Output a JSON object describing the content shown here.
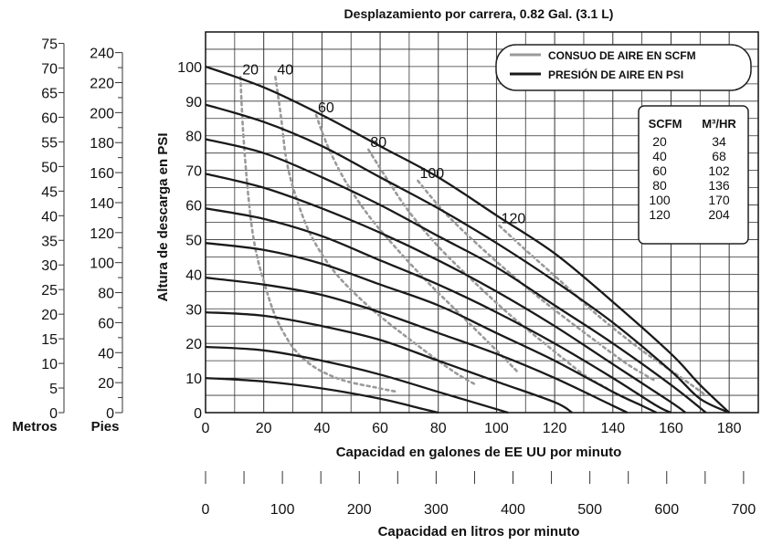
{
  "chart_data": {
    "type": "line",
    "title": "Desplazamiento por carrera, 0.82 Gal. (3.1 L)",
    "xlabel": "Capacidad en galones de EE UU por minuto",
    "ylabel": "Altura de descarga en PSI",
    "xlim": [
      0,
      190
    ],
    "ylim": [
      0,
      110
    ],
    "xticks": [
      "0",
      "20",
      "40",
      "60",
      "80",
      "100",
      "120",
      "140",
      "160",
      "180"
    ],
    "yticks": [
      "0",
      "10",
      "20",
      "30",
      "40",
      "50",
      "60",
      "70",
      "80",
      "90",
      "100"
    ],
    "secondary_x": {
      "label": "Capacidad en litros por minuto",
      "ticks": [
        "0",
        "100",
        "200",
        "300",
        "400",
        "500",
        "600",
        "700"
      ]
    },
    "left_axes": [
      {
        "label": "Metros",
        "ticks": [
          "0",
          "5",
          "10",
          "15",
          "20",
          "25",
          "30",
          "35",
          "40",
          "45",
          "50",
          "55",
          "60",
          "65",
          "70",
          "75"
        ]
      },
      {
        "label": "Pies",
        "ticks": [
          "0",
          "20",
          "40",
          "60",
          "80",
          "100",
          "120",
          "140",
          "160",
          "180",
          "200",
          "220",
          "240"
        ]
      }
    ],
    "legend": {
      "placement": "top-right",
      "items": [
        {
          "label": "CONSUO DE AIRE EN SCFM",
          "style": "dashed",
          "color": "#9a9a9a"
        },
        {
          "label": "PRESIÓN DE AIRE EN PSI",
          "style": "solid",
          "color": "#1a1a1a"
        }
      ]
    },
    "conversion_table": {
      "headers": [
        "SCFM",
        "M³/HR"
      ],
      "rows": [
        [
          "20",
          "34"
        ],
        [
          "40",
          "68"
        ],
        [
          "60",
          "102"
        ],
        [
          "80",
          "136"
        ],
        [
          "100",
          "170"
        ],
        [
          "120",
          "204"
        ]
      ]
    },
    "pressure_curves": [
      {
        "psi": 100,
        "points": [
          [
            0,
            100
          ],
          [
            20,
            94
          ],
          [
            40,
            86
          ],
          [
            60,
            77
          ],
          [
            80,
            68
          ],
          [
            100,
            57
          ],
          [
            120,
            46
          ],
          [
            140,
            32
          ],
          [
            160,
            17
          ],
          [
            170,
            8
          ],
          [
            180,
            0
          ]
        ]
      },
      {
        "psi": 90,
        "points": [
          [
            0,
            89
          ],
          [
            20,
            84
          ],
          [
            40,
            77
          ],
          [
            60,
            68
          ],
          [
            80,
            59
          ],
          [
            100,
            49
          ],
          [
            120,
            38
          ],
          [
            140,
            26
          ],
          [
            160,
            12
          ],
          [
            170,
            4
          ],
          [
            180,
            0
          ]
        ]
      },
      {
        "psi": 80,
        "points": [
          [
            0,
            79
          ],
          [
            20,
            75
          ],
          [
            40,
            68
          ],
          [
            60,
            60
          ],
          [
            80,
            51
          ],
          [
            100,
            42
          ],
          [
            120,
            31
          ],
          [
            140,
            20
          ],
          [
            160,
            8
          ],
          [
            172,
            0
          ]
        ]
      },
      {
        "psi": 70,
        "points": [
          [
            0,
            69
          ],
          [
            20,
            65
          ],
          [
            40,
            59
          ],
          [
            60,
            52
          ],
          [
            80,
            44
          ],
          [
            100,
            35
          ],
          [
            120,
            25
          ],
          [
            140,
            14
          ],
          [
            160,
            3
          ],
          [
            165,
            0
          ]
        ]
      },
      {
        "psi": 60,
        "points": [
          [
            0,
            59
          ],
          [
            20,
            56
          ],
          [
            40,
            51
          ],
          [
            60,
            44
          ],
          [
            80,
            37
          ],
          [
            100,
            29
          ],
          [
            120,
            20
          ],
          [
            140,
            10
          ],
          [
            155,
            2
          ],
          [
            160,
            0
          ]
        ]
      },
      {
        "psi": 50,
        "points": [
          [
            0,
            49
          ],
          [
            20,
            47
          ],
          [
            40,
            43
          ],
          [
            60,
            37
          ],
          [
            80,
            31
          ],
          [
            100,
            23
          ],
          [
            120,
            15
          ],
          [
            140,
            6
          ],
          [
            150,
            2
          ],
          [
            155,
            0
          ]
        ]
      },
      {
        "psi": 40,
        "points": [
          [
            0,
            39
          ],
          [
            20,
            37
          ],
          [
            40,
            34
          ],
          [
            60,
            29
          ],
          [
            80,
            23
          ],
          [
            100,
            17
          ],
          [
            120,
            10
          ],
          [
            140,
            2
          ],
          [
            145,
            0
          ]
        ]
      },
      {
        "psi": 30,
        "points": [
          [
            0,
            29
          ],
          [
            20,
            28
          ],
          [
            40,
            25
          ],
          [
            60,
            21
          ],
          [
            80,
            15
          ],
          [
            100,
            9
          ],
          [
            120,
            3
          ],
          [
            126,
            0
          ]
        ]
      },
      {
        "psi": 20,
        "points": [
          [
            0,
            19
          ],
          [
            20,
            18
          ],
          [
            40,
            15
          ],
          [
            60,
            11
          ],
          [
            80,
            6
          ],
          [
            100,
            1
          ],
          [
            104,
            0
          ]
        ]
      },
      {
        "psi": 10,
        "points": [
          [
            0,
            10
          ],
          [
            20,
            9
          ],
          [
            40,
            7
          ],
          [
            60,
            4
          ],
          [
            75,
            1
          ],
          [
            80,
            0
          ]
        ]
      }
    ],
    "air_consumption_curves": [
      {
        "scfm": 20,
        "label": "20",
        "points": [
          [
            12,
            97
          ],
          [
            13,
            80
          ],
          [
            15,
            60
          ],
          [
            17,
            48
          ],
          [
            20,
            38
          ],
          [
            25,
            26
          ],
          [
            33,
            16
          ],
          [
            45,
            10
          ],
          [
            60,
            7
          ],
          [
            66,
            6
          ]
        ]
      },
      {
        "scfm": 40,
        "label": "40",
        "points": [
          [
            24,
            97
          ],
          [
            26,
            85
          ],
          [
            28,
            72
          ],
          [
            32,
            60
          ],
          [
            37,
            50
          ],
          [
            45,
            40
          ],
          [
            57,
            30
          ],
          [
            72,
            20
          ],
          [
            85,
            12
          ],
          [
            93,
            8
          ]
        ]
      },
      {
        "scfm": 60,
        "label": "60",
        "points": [
          [
            38,
            86
          ],
          [
            42,
            77
          ],
          [
            48,
            67
          ],
          [
            56,
            57
          ],
          [
            65,
            48
          ],
          [
            76,
            38
          ],
          [
            88,
            28
          ],
          [
            100,
            18
          ],
          [
            107,
            12
          ]
        ]
      },
      {
        "scfm": 80,
        "label": "80",
        "points": [
          [
            56,
            76
          ],
          [
            62,
            68
          ],
          [
            70,
            58
          ],
          [
            80,
            48
          ],
          [
            92,
            38
          ],
          [
            105,
            28
          ],
          [
            118,
            19
          ],
          [
            130,
            11
          ],
          [
            138,
            7
          ]
        ]
      },
      {
        "scfm": 100,
        "label": "100",
        "points": [
          [
            73,
            67
          ],
          [
            82,
            58
          ],
          [
            93,
            49
          ],
          [
            105,
            40
          ],
          [
            118,
            31
          ],
          [
            132,
            22
          ],
          [
            145,
            14
          ],
          [
            155,
            9
          ]
        ]
      },
      {
        "scfm": 120,
        "label": "120",
        "points": [
          [
            101,
            54
          ],
          [
            110,
            47
          ],
          [
            122,
            38
          ],
          [
            135,
            28
          ],
          [
            150,
            18
          ],
          [
            162,
            11
          ],
          [
            172,
            5
          ]
        ]
      }
    ]
  }
}
